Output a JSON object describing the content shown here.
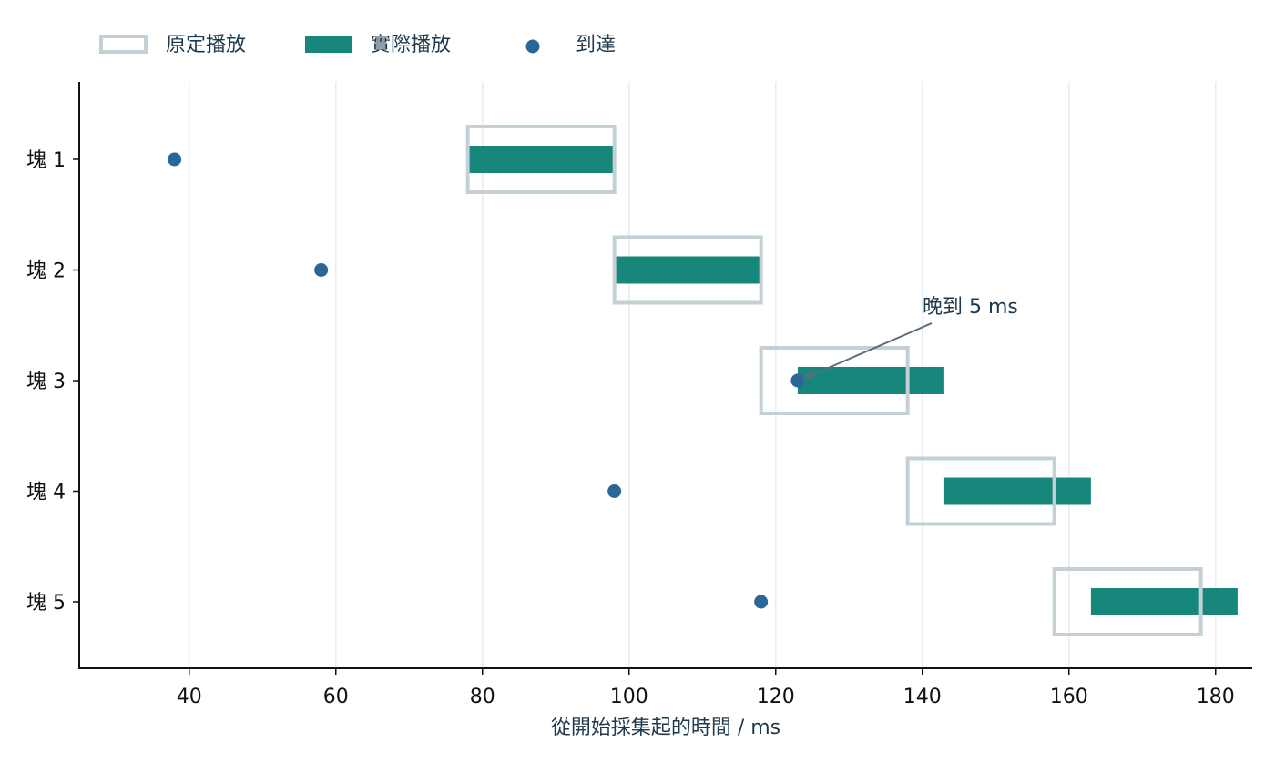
{
  "chart_data": {
    "type": "gantt",
    "xlabel": "從開始採集起的時間 / ms",
    "xlim": [
      25,
      185
    ],
    "xticks": [
      40,
      60,
      80,
      100,
      120,
      140,
      160,
      180
    ],
    "grid": "vertical",
    "legend": {
      "placement": "top-left",
      "entries": [
        {
          "key": "scheduled",
          "label": "原定播放"
        },
        {
          "key": "actual",
          "label": "實際播放"
        },
        {
          "key": "arrival",
          "label": "到達"
        }
      ]
    },
    "rows": [
      {
        "label": "塊 1",
        "arrival": 38,
        "scheduled": [
          78,
          98
        ],
        "actual": [
          78,
          98
        ]
      },
      {
        "label": "塊 2",
        "arrival": 58,
        "scheduled": [
          98,
          118
        ],
        "actual": [
          98,
          118
        ]
      },
      {
        "label": "塊 3",
        "arrival": 123,
        "scheduled": [
          118,
          138
        ],
        "actual": [
          123,
          143
        ]
      },
      {
        "label": "塊 4",
        "arrival": 98,
        "scheduled": [
          138,
          158
        ],
        "actual": [
          143,
          163
        ]
      },
      {
        "label": "塊 5",
        "arrival": 118,
        "scheduled": [
          158,
          178
        ],
        "actual": [
          163,
          183
        ]
      }
    ],
    "annotation": {
      "text": "晚到 5 ms",
      "row": 2,
      "x": 123
    },
    "colors": {
      "scheduled": "#c3d0d6",
      "actual": "#17877b",
      "arrival": "#2a6796",
      "grid": "#e8ecee",
      "axis": "#111111",
      "annotation_arrow": "#5a6e7b"
    }
  }
}
